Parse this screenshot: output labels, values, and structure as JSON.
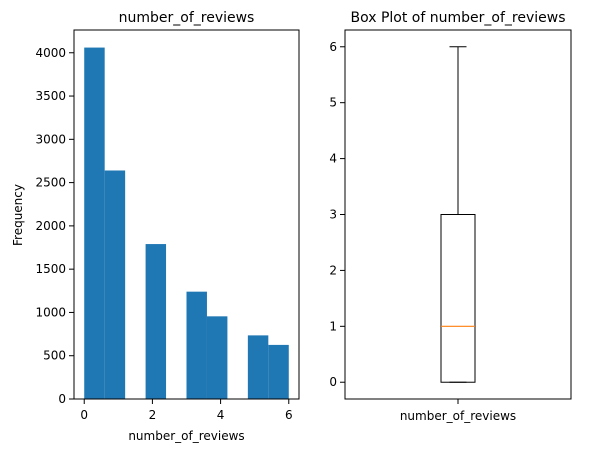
{
  "chart_data": [
    {
      "type": "bar",
      "subtype": "histogram",
      "title": "number_of_reviews",
      "xlabel": "number_of_reviews",
      "ylabel": "Frequency",
      "bins": [
        {
          "x0": 0.0,
          "x1": 0.6,
          "count": 4060
        },
        {
          "x0": 0.6,
          "x1": 1.2,
          "count": 2640
        },
        {
          "x0": 1.2,
          "x1": 1.8,
          "count": 0
        },
        {
          "x0": 1.8,
          "x1": 2.4,
          "count": 1790
        },
        {
          "x0": 2.4,
          "x1": 3.0,
          "count": 0
        },
        {
          "x0": 3.0,
          "x1": 3.6,
          "count": 1240
        },
        {
          "x0": 3.6,
          "x1": 4.2,
          "count": 955
        },
        {
          "x0": 4.2,
          "x1": 4.8,
          "count": 0
        },
        {
          "x0": 4.8,
          "x1": 5.4,
          "count": 735
        },
        {
          "x0": 5.4,
          "x1": 6.0,
          "count": 625
        }
      ],
      "xlim": [
        -0.3,
        6.3
      ],
      "ylim": [
        0,
        4263
      ],
      "xticks": [
        0,
        2,
        4,
        6
      ],
      "yticks": [
        0,
        500,
        1000,
        1500,
        2000,
        2500,
        3000,
        3500,
        4000
      ],
      "bar_color": "#1f77b4",
      "grid": false
    },
    {
      "type": "box",
      "title": "Box Plot of number_of_reviews",
      "category": "number_of_reviews",
      "min": 0,
      "q1": 0,
      "median": 1,
      "q3": 3,
      "max": 6,
      "ylim": [
        -0.3,
        6.3
      ],
      "yticks": [
        0,
        1,
        2,
        3,
        4,
        5,
        6
      ],
      "median_color": "#ff7f0e",
      "grid": false
    }
  ]
}
